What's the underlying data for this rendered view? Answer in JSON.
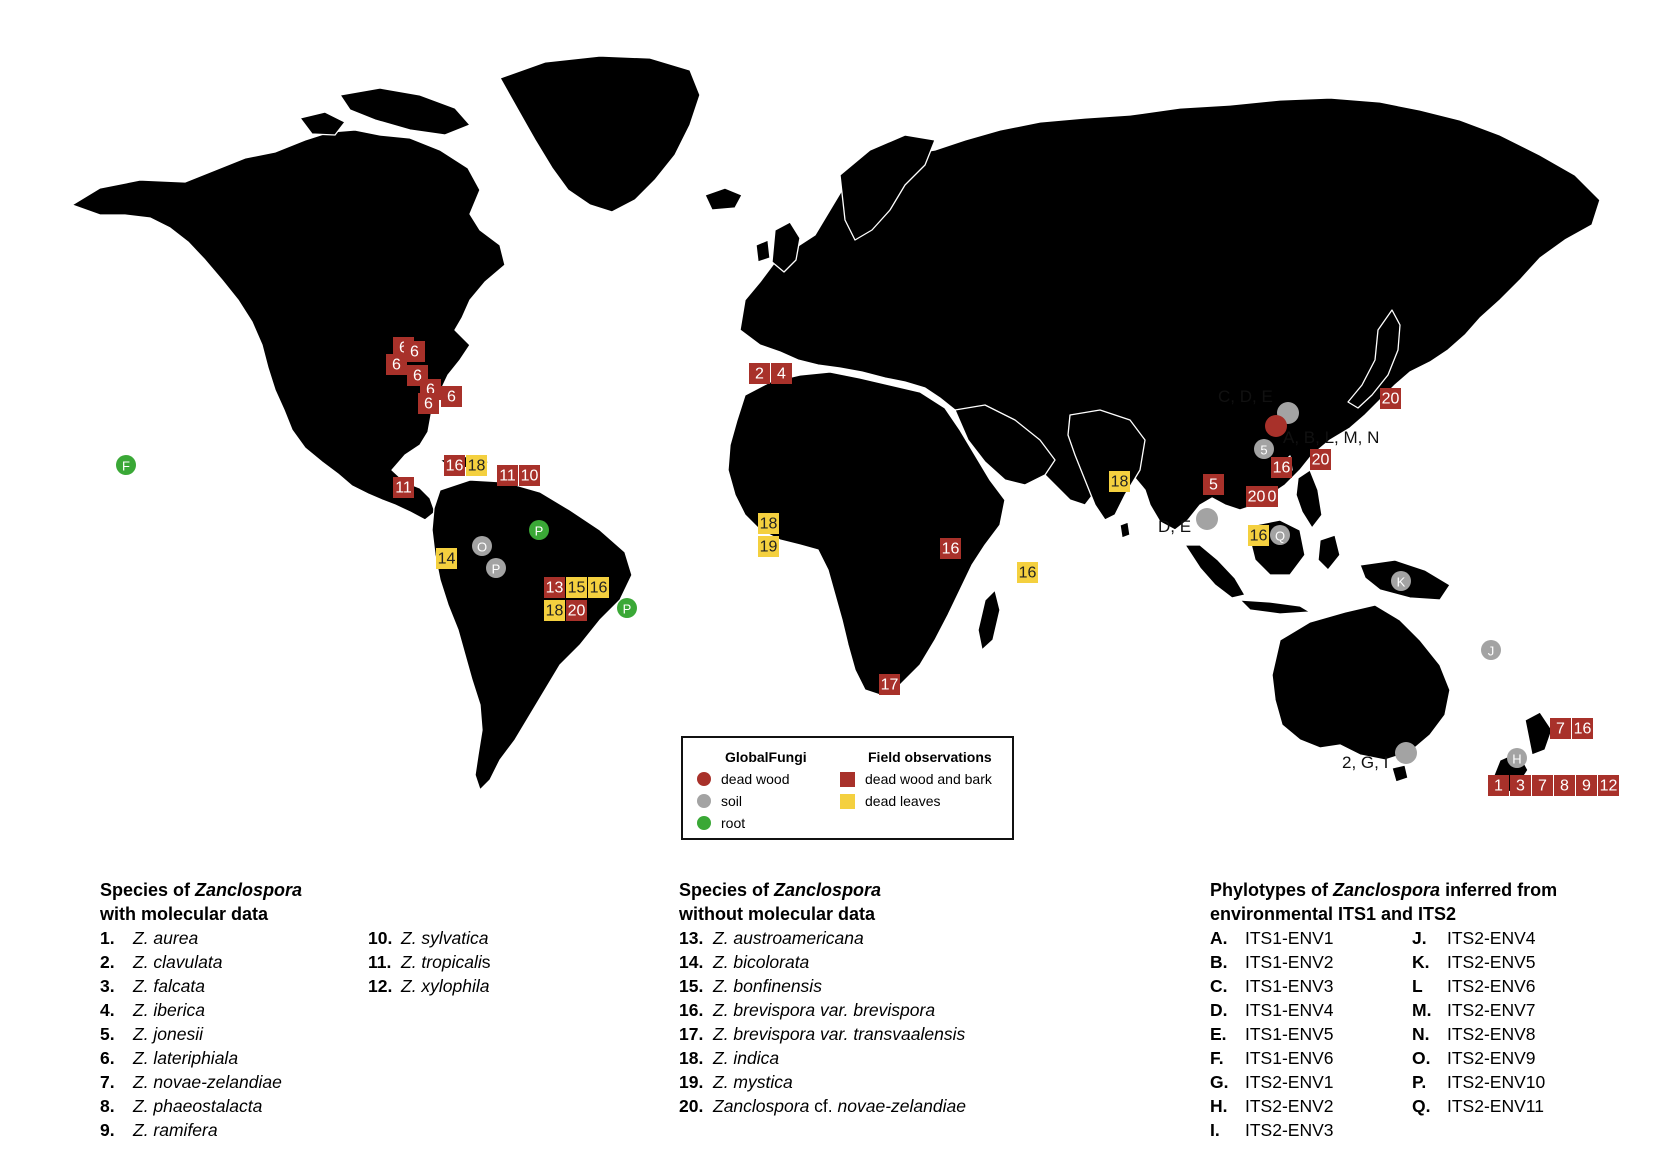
{
  "colors": {
    "land": "#DDB893",
    "border": "#ffffff",
    "dead_wood": "#A8312A",
    "soil": "#A3A3A3",
    "root": "#3AA836",
    "dead_wood_bark": "#A8312A",
    "dead_leaves": "#F4D03F"
  },
  "legend": {
    "left_title": "GlobalFungi",
    "left_items": [
      {
        "label": "dead wood",
        "color": "#A8312A"
      },
      {
        "label": "soil",
        "color": "#A3A3A3"
      },
      {
        "label": "root",
        "color": "#3AA836"
      }
    ],
    "right_title": "Field observations",
    "right_items": [
      {
        "label": "dead wood and bark",
        "color": "#A8312A"
      },
      {
        "label": "dead leaves",
        "color": "#F4D03F"
      }
    ]
  },
  "squares_red": [
    "6",
    "6",
    "6",
    "6",
    "6",
    "6",
    "6",
    "2",
    "4",
    "20",
    "20",
    "16",
    "20",
    "5",
    "20",
    "11",
    "10",
    "11",
    "16",
    "13",
    "20",
    "16",
    "17",
    "7",
    "16",
    "1",
    "3",
    "7",
    "8",
    "9",
    "12"
  ],
  "squares_yellow": [
    "18",
    "18",
    "14",
    "15",
    "16",
    "18",
    "18",
    "19",
    "16",
    "16"
  ],
  "circles": [
    "F",
    "O",
    "P",
    "P",
    "P",
    "K",
    "J",
    "H",
    "Q",
    "5"
  ],
  "callouts": [
    "C, D, E",
    "A, B, L, M, N",
    "D, E",
    "2, G, I"
  ],
  "species_mol": {
    "title_pre": "Species of ",
    "title_genus": "Zanclospora",
    "title_post": "with molecular data",
    "items": [
      {
        "n": "1.",
        "name": "Z. aurea"
      },
      {
        "n": "2.",
        "name": "Z. clavulata"
      },
      {
        "n": "3.",
        "name": "Z. falcata"
      },
      {
        "n": "4.",
        "name": "Z. iberica"
      },
      {
        "n": "5.",
        "name": "Z. jonesii"
      },
      {
        "n": "6.",
        "name": "Z. lateriphiala"
      },
      {
        "n": "7.",
        "name": "Z. novae-zelandiae"
      },
      {
        "n": "8.",
        "name": "Z. phaeostalacta"
      },
      {
        "n": "9.",
        "name": "Z. ramifera"
      },
      {
        "n": "10.",
        "name": "Z. sylvatica"
      },
      {
        "n": "11.",
        "name": "Z. tropicali",
        "suffix": "s"
      },
      {
        "n": "12.",
        "name": "Z. xylophila"
      }
    ]
  },
  "species_nomol": {
    "title_pre": "Species of ",
    "title_genus": "Zanclospora",
    "title_post": "without molecular data",
    "items": [
      {
        "n": "13.",
        "name": "Z. austroamericana"
      },
      {
        "n": "14.",
        "name": "Z. bicolorata"
      },
      {
        "n": "15.",
        "name": "Z. bonfinensis"
      },
      {
        "n": "16.",
        "name": "Z. brevispora var. brevispora"
      },
      {
        "n": "17.",
        "name": "Z. brevispora var. transvaalensis"
      },
      {
        "n": "18.",
        "name": "Z. indica"
      },
      {
        "n": "19.",
        "name": "Z. mystica"
      },
      {
        "n": "20.",
        "name": "Zanclospora",
        "mid": " cf. ",
        "name2": "novae-zelandiae"
      }
    ]
  },
  "phylotypes": {
    "title_pre": "Phylotypes of ",
    "title_genus": "Zanclospora",
    "title_post1": " inferred from",
    "title_post2": "environmental ITS1 and ITS2",
    "items": [
      {
        "n": "A.",
        "name": "ITS1-ENV1"
      },
      {
        "n": "B.",
        "name": "ITS1-ENV2"
      },
      {
        "n": "C.",
        "name": "ITS1-ENV3"
      },
      {
        "n": "D.",
        "name": "ITS1-ENV4"
      },
      {
        "n": "E.",
        "name": "ITS1-ENV5"
      },
      {
        "n": "F.",
        "name": "ITS1-ENV6"
      },
      {
        "n": "G.",
        "name": "ITS2-ENV1"
      },
      {
        "n": "H.",
        "name": "ITS2-ENV2"
      },
      {
        "n": "I.",
        "name": "ITS2-ENV3"
      },
      {
        "n": "J.",
        "name": "ITS2-ENV4"
      },
      {
        "n": "K.",
        "name": "ITS2-ENV5"
      },
      {
        "n": "L",
        "name": "ITS2-ENV6"
      },
      {
        "n": "M.",
        "name": "ITS2-ENV7"
      },
      {
        "n": "N.",
        "name": "ITS2-ENV8"
      },
      {
        "n": "O.",
        "name": "ITS2-ENV9"
      },
      {
        "n": "P.",
        "name": "ITS2-ENV10"
      },
      {
        "n": "Q.",
        "name": "ITS2-ENV11"
      }
    ]
  }
}
